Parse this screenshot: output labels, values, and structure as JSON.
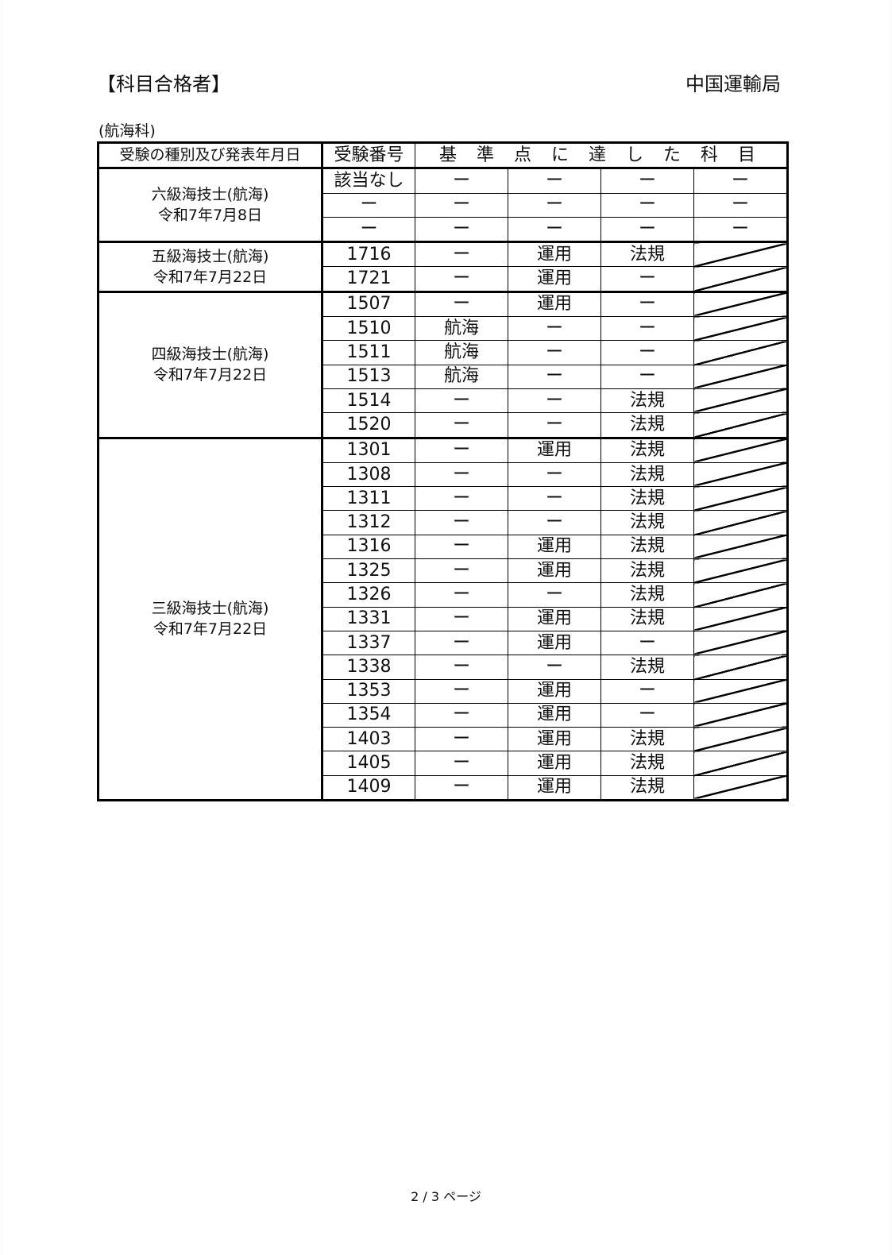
{
  "header": {
    "title": "【科目合格者】",
    "issuer": "中国運輸局",
    "department": "(航海科)"
  },
  "table": {
    "headers": {
      "exam_type": "受験の種別及び発表年月日",
      "exam_number": "受験番号",
      "subjects": "基 準 点 に 達 し た 科 目"
    },
    "groups": [
      {
        "name": "六級海技士(航海)",
        "date": "令和7年7月8日",
        "rows": [
          [
            "該当なし",
            "ー",
            "ー",
            "ー",
            "ー"
          ],
          [
            "ー",
            "ー",
            "ー",
            "ー",
            "ー"
          ],
          [
            "ー",
            "ー",
            "ー",
            "ー",
            "ー"
          ]
        ]
      },
      {
        "name": "五級海技士(航海)",
        "date": "令和7年7月22日",
        "rows": [
          [
            "1716",
            "ー",
            "運用",
            "法規",
            ""
          ],
          [
            "1721",
            "ー",
            "運用",
            "ー",
            ""
          ]
        ]
      },
      {
        "name": "四級海技士(航海)",
        "date": "令和7年7月22日",
        "rows": [
          [
            "1507",
            "ー",
            "運用",
            "ー",
            ""
          ],
          [
            "1510",
            "航海",
            "ー",
            "ー",
            ""
          ],
          [
            "1511",
            "航海",
            "ー",
            "ー",
            ""
          ],
          [
            "1513",
            "航海",
            "ー",
            "ー",
            ""
          ],
          [
            "1514",
            "ー",
            "ー",
            "法規",
            ""
          ],
          [
            "1520",
            "ー",
            "ー",
            "法規",
            ""
          ]
        ]
      },
      {
        "name": "三級海技士(航海)",
        "date": "令和7年7月22日",
        "rows": [
          [
            "1301",
            "ー",
            "運用",
            "法規",
            ""
          ],
          [
            "1308",
            "ー",
            "ー",
            "法規",
            ""
          ],
          [
            "1311",
            "ー",
            "ー",
            "法規",
            ""
          ],
          [
            "1312",
            "ー",
            "ー",
            "法規",
            ""
          ],
          [
            "1316",
            "ー",
            "運用",
            "法規",
            ""
          ],
          [
            "1325",
            "ー",
            "運用",
            "法規",
            ""
          ],
          [
            "1326",
            "ー",
            "ー",
            "法規",
            ""
          ],
          [
            "1331",
            "ー",
            "運用",
            "法規",
            ""
          ],
          [
            "1337",
            "ー",
            "運用",
            "ー",
            ""
          ],
          [
            "1338",
            "ー",
            "ー",
            "法規",
            ""
          ],
          [
            "1353",
            "ー",
            "運用",
            "ー",
            ""
          ],
          [
            "1354",
            "ー",
            "運用",
            "ー",
            ""
          ],
          [
            "1403",
            "ー",
            "運用",
            "法規",
            ""
          ],
          [
            "1405",
            "ー",
            "運用",
            "法規",
            ""
          ],
          [
            "1409",
            "ー",
            "運用",
            "法規",
            ""
          ]
        ]
      }
    ]
  },
  "footer": {
    "page": "2 / 3 ページ"
  }
}
